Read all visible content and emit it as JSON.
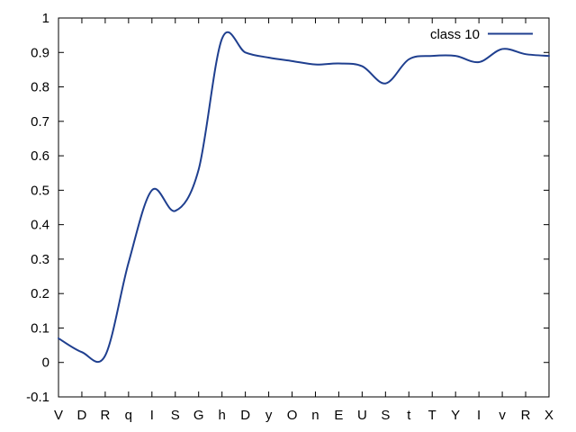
{
  "chart_data": {
    "type": "line",
    "categories": [
      "V",
      "D",
      "R",
      "q",
      "I",
      "S",
      "G",
      "h",
      "D",
      "y",
      "O",
      "n",
      "E",
      "U",
      "S",
      "t",
      "T",
      "Y",
      "I",
      "v",
      "R",
      "X"
    ],
    "ylim": [
      -0.1,
      1
    ],
    "yticks": [
      "-0.1",
      "0",
      "0.1",
      "0.2",
      "0.3",
      "0.4",
      "0.5",
      "0.6",
      "0.7",
      "0.8",
      "0.9",
      "1"
    ],
    "grid": false,
    "legend": "top-right",
    "series": [
      {
        "name": "class 10",
        "color": "#1f3f8f",
        "values": [
          0.07,
          0.03,
          0.02,
          0.29,
          0.5,
          0.44,
          0.56,
          0.94,
          0.9,
          0.885,
          0.875,
          0.865,
          0.868,
          0.86,
          0.81,
          0.88,
          0.89,
          0.89,
          0.872,
          0.91,
          0.895,
          0.89
        ]
      }
    ]
  }
}
